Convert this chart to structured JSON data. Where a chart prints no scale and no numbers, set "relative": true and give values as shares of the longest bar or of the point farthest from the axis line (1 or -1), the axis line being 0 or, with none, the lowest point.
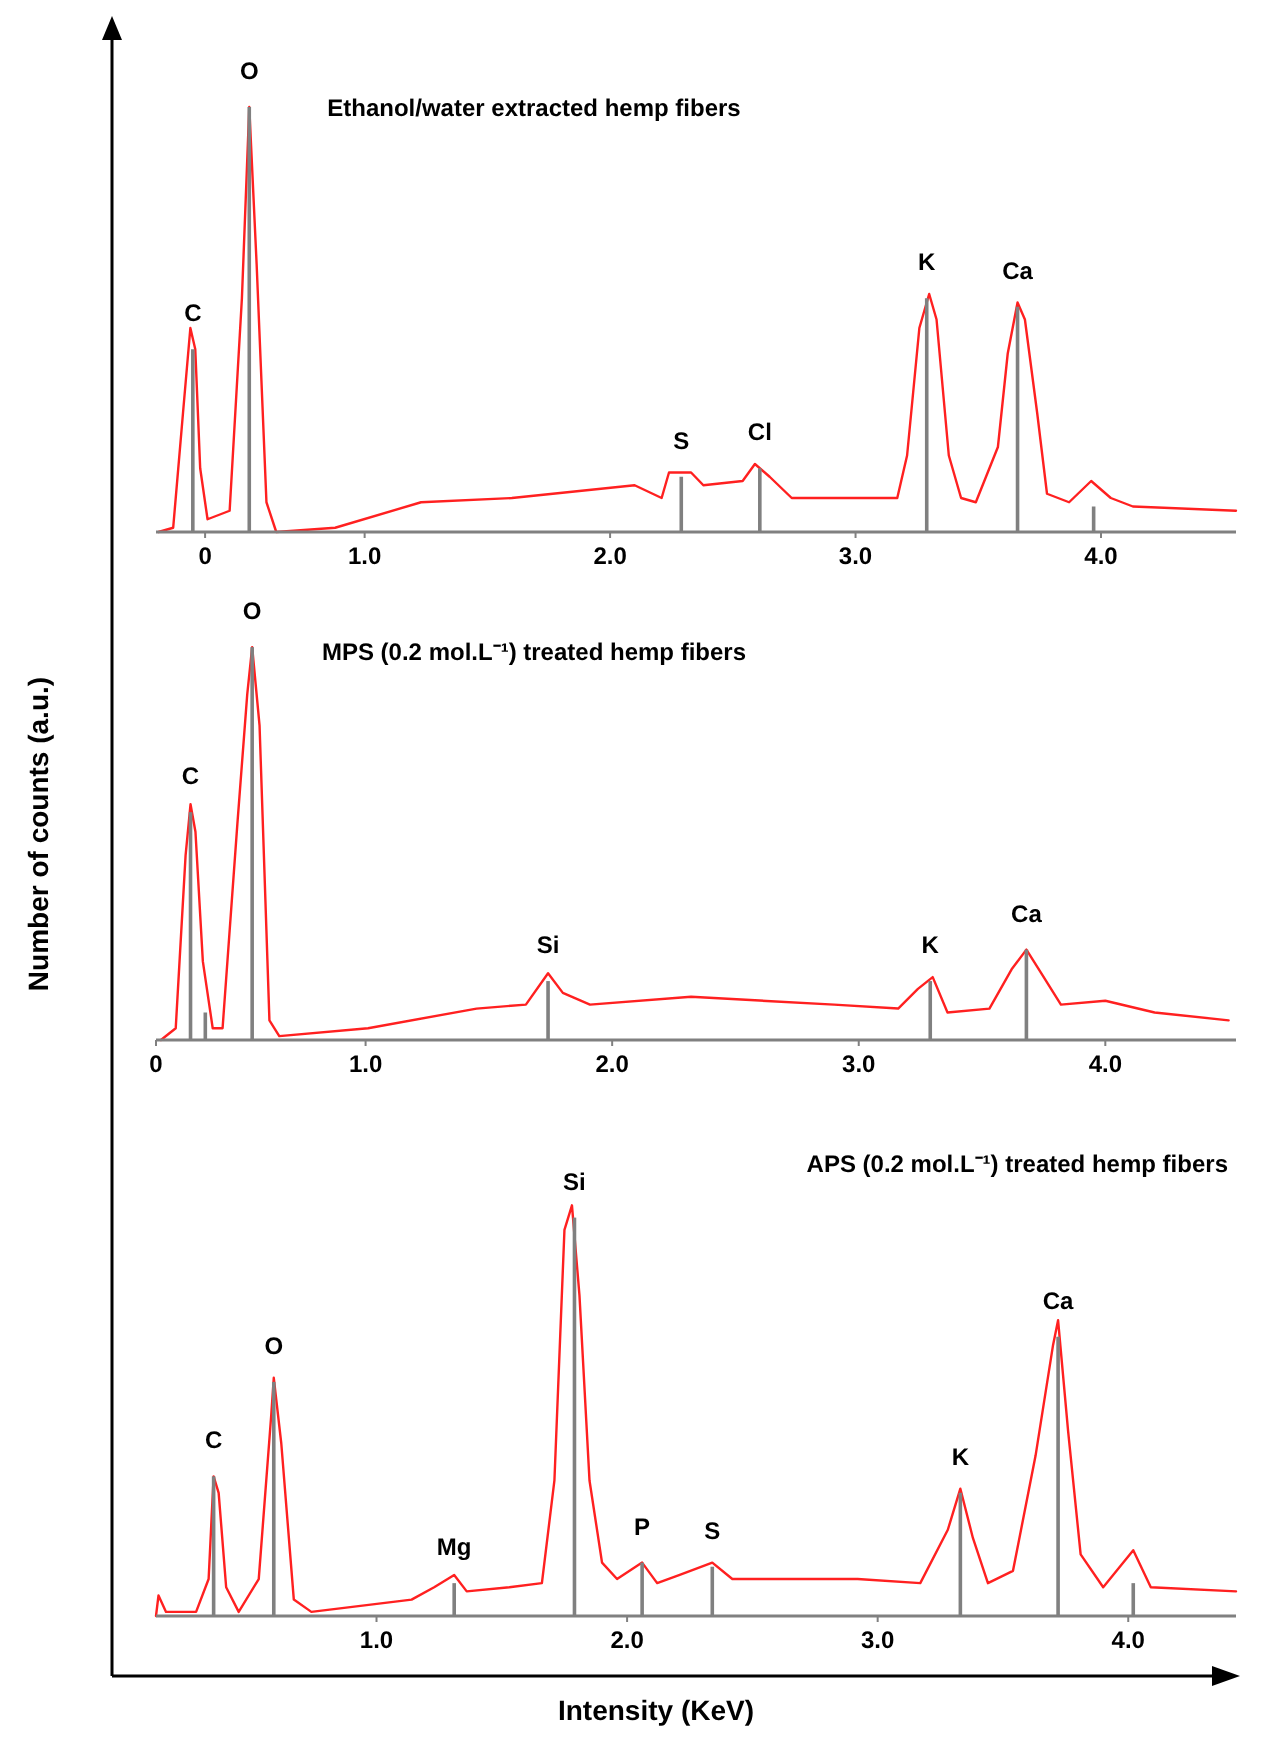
{
  "chart_data": [
    {
      "type": "line",
      "title": "Ethanol/water extracted hemp fibers",
      "relative": true,
      "xlim": [
        0.15,
        4.55
      ],
      "xticks": [
        {
          "value": 0.35,
          "label": "0"
        },
        {
          "value": 1,
          "label": "1.0"
        },
        {
          "value": 2,
          "label": "2.0"
        },
        {
          "value": 3,
          "label": "3.0"
        },
        {
          "value": 4,
          "label": "4.0"
        }
      ],
      "series": [
        {
          "color": "#ff2020",
          "x": [
            0.16,
            0.22,
            0.26,
            0.29,
            0.31,
            0.33,
            0.36,
            0.45,
            0.5,
            0.53,
            0.56,
            0.6,
            0.64,
            0.88,
            1.23,
            1.6,
            2.1,
            2.21,
            2.24,
            2.33,
            2.38,
            2.54,
            2.59,
            2.65,
            2.74,
            3.17,
            3.21,
            3.26,
            3.3,
            3.33,
            3.38,
            3.43,
            3.49,
            3.58,
            3.62,
            3.66,
            3.69,
            3.74,
            3.78,
            3.87,
            3.96,
            4.04,
            4.13,
            4.55
          ],
          "values": [
            0,
            0.01,
            0.28,
            0.48,
            0.43,
            0.15,
            0.03,
            0.05,
            0.55,
            1,
            0.63,
            0.07,
            0,
            0.01,
            0.07,
            0.08,
            0.11,
            0.08,
            0.14,
            0.14,
            0.11,
            0.12,
            0.16,
            0.13,
            0.08,
            0.08,
            0.18,
            0.48,
            0.56,
            0.5,
            0.18,
            0.08,
            0.07,
            0.2,
            0.42,
            0.54,
            0.5,
            0.28,
            0.09,
            0.07,
            0.12,
            0.08,
            0.06,
            0.05
          ]
        },
        {
          "type": "bar",
          "color": "#808080",
          "x": [
            0.3,
            0.53,
            2.29,
            2.61,
            3.29,
            3.66,
            3.97
          ],
          "values": [
            0.43,
            1,
            0.13,
            0.15,
            0.55,
            0.53,
            0.06
          ]
        }
      ],
      "annotations": [
        {
          "text": "C",
          "x": 0.3,
          "y": 0.43
        },
        {
          "text": "O",
          "x": 0.53,
          "y": 1
        },
        {
          "text": "S",
          "x": 2.29,
          "y": 0.13
        },
        {
          "text": "Cl",
          "x": 2.61,
          "y": 0.15
        },
        {
          "text": "K",
          "x": 3.29,
          "y": 0.55
        },
        {
          "text": "Ca",
          "x": 3.66,
          "y": 0.53
        }
      ]
    },
    {
      "type": "line",
      "title": "MPS (0.2 mol.L⁻¹) treated hemp fibers",
      "ylabel": "Number of counts (a.u.)",
      "relative": true,
      "xlim": [
        0.15,
        4.53
      ],
      "xticks": [
        {
          "value": 0.15,
          "label": "0"
        },
        {
          "value": 1,
          "label": "1.0"
        },
        {
          "value": 2,
          "label": "2.0"
        },
        {
          "value": 3,
          "label": "3.0"
        },
        {
          "value": 4,
          "label": "4.0"
        }
      ],
      "series": [
        {
          "color": "#ff2020",
          "x": [
            0.17,
            0.23,
            0.27,
            0.29,
            0.31,
            0.34,
            0.38,
            0.42,
            0.48,
            0.52,
            0.54,
            0.57,
            0.61,
            0.65,
            1.01,
            1.45,
            1.65,
            1.74,
            1.8,
            1.91,
            2.32,
            2.9,
            3.16,
            3.24,
            3.3,
            3.36,
            3.53,
            3.62,
            3.68,
            3.74,
            3.82,
            4.0,
            4.2,
            4.5
          ],
          "values": [
            0,
            0.03,
            0.47,
            0.6,
            0.53,
            0.2,
            0.03,
            0.03,
            0.55,
            0.88,
            1,
            0.8,
            0.05,
            0.01,
            0.03,
            0.08,
            0.09,
            0.17,
            0.12,
            0.09,
            0.11,
            0.09,
            0.08,
            0.13,
            0.16,
            0.07,
            0.08,
            0.18,
            0.23,
            0.17,
            0.09,
            0.1,
            0.07,
            0.05
          ]
        },
        {
          "type": "bar",
          "color": "#808080",
          "x": [
            0.29,
            0.35,
            0.54,
            1.74,
            3.29,
            3.68
          ],
          "values": [
            0.58,
            0.07,
            1,
            0.15,
            0.15,
            0.23
          ]
        }
      ],
      "annotations": [
        {
          "text": "O",
          "x": 0.54,
          "y": 1
        },
        {
          "text": "C",
          "x": 0.29,
          "y": 0.58
        },
        {
          "text": "Si",
          "x": 1.74,
          "y": 0.15
        },
        {
          "text": "K",
          "x": 3.29,
          "y": 0.15
        },
        {
          "text": "Ca",
          "x": 3.68,
          "y": 0.23
        }
      ]
    },
    {
      "type": "line",
      "title": "APS (0.2 mol.L⁻¹) treated hemp fibers",
      "xlabel": "Intensity (KeV)",
      "relative": true,
      "xlim": [
        0.12,
        4.43
      ],
      "xticks": [
        {
          "value": 1,
          "label": "1.0"
        },
        {
          "value": 2,
          "label": "2.0"
        },
        {
          "value": 3,
          "label": "3.0"
        },
        {
          "value": 4,
          "label": "4.0"
        }
      ],
      "series": [
        {
          "color": "#ff2020",
          "x": [
            0.12,
            0.13,
            0.16,
            0.28,
            0.33,
            0.35,
            0.37,
            0.4,
            0.45,
            0.53,
            0.58,
            0.59,
            0.62,
            0.67,
            0.74,
            1.14,
            1.23,
            1.31,
            1.36,
            1.53,
            1.66,
            1.71,
            1.75,
            1.78,
            1.81,
            1.85,
            1.9,
            1.96,
            2.06,
            2.12,
            2.21,
            2.34,
            2.42,
            2.92,
            3.17,
            3.28,
            3.33,
            3.38,
            3.44,
            3.54,
            3.63,
            3.7,
            3.72,
            3.76,
            3.81,
            3.9,
            4.02,
            4.09,
            4.43
          ],
          "values": [
            0,
            0.05,
            0.01,
            0.01,
            0.09,
            0.34,
            0.3,
            0.07,
            0.01,
            0.09,
            0.49,
            0.58,
            0.42,
            0.04,
            0.01,
            0.04,
            0.07,
            0.1,
            0.06,
            0.07,
            0.08,
            0.33,
            0.94,
            1,
            0.78,
            0.33,
            0.13,
            0.09,
            0.13,
            0.08,
            0.1,
            0.13,
            0.09,
            0.09,
            0.08,
            0.21,
            0.31,
            0.19,
            0.08,
            0.11,
            0.39,
            0.66,
            0.72,
            0.45,
            0.15,
            0.07,
            0.16,
            0.07,
            0.06
          ]
        },
        {
          "type": "bar",
          "color": "#808080",
          "x": [
            0.35,
            0.59,
            1.31,
            1.79,
            2.06,
            2.34,
            3.33,
            3.72,
            4.02
          ],
          "values": [
            0.34,
            0.57,
            0.08,
            0.97,
            0.13,
            0.12,
            0.3,
            0.68,
            0.08
          ]
        }
      ],
      "annotations": [
        {
          "text": "C",
          "x": 0.35,
          "y": 0.34
        },
        {
          "text": "O",
          "x": 0.59,
          "y": 0.57
        },
        {
          "text": "Mg",
          "x": 1.31,
          "y": 0.08
        },
        {
          "text": "Si",
          "x": 1.79,
          "y": 0.97
        },
        {
          "text": "P",
          "x": 2.06,
          "y": 0.13
        },
        {
          "text": "S",
          "x": 2.34,
          "y": 0.12
        },
        {
          "text": "K",
          "x": 3.33,
          "y": 0.3
        },
        {
          "text": "Ca",
          "x": 3.72,
          "y": 0.68
        }
      ]
    }
  ]
}
